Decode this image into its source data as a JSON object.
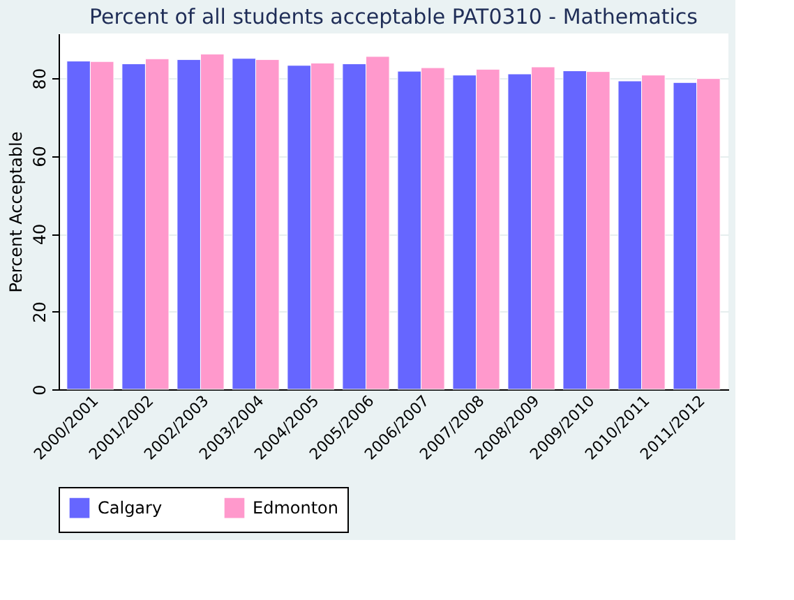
{
  "chart_data": {
    "type": "bar",
    "title": "Percent of all students acceptable  PAT0310 - Mathematics",
    "ylabel": "Percent Acceptable",
    "categories": [
      "2000/2001",
      "2001/2002",
      "2002/2003",
      "2003/2004",
      "2004/2005",
      "2005/2006",
      "2006/2007",
      "2007/2008",
      "2008/2009",
      "2009/2010",
      "2010/2011",
      "2011/2012"
    ],
    "series": [
      {
        "name": "Calgary",
        "color": "#6666ff",
        "values": [
          84.4,
          83.7,
          84.8,
          85.1,
          83.3,
          83.7,
          81.8,
          80.8,
          81.1,
          81.9,
          79.3,
          78.9
        ]
      },
      {
        "name": "Edmonton",
        "color": "#ff99cc",
        "values": [
          84.3,
          85.0,
          86.2,
          84.8,
          83.9,
          85.6,
          82.7,
          82.3,
          82.9,
          81.7,
          80.8,
          79.9
        ]
      }
    ],
    "ylim": [
      0,
      91.5
    ],
    "yticks": [
      0,
      20,
      40,
      60,
      80
    ],
    "grid": "y",
    "legend": "bottom"
  }
}
